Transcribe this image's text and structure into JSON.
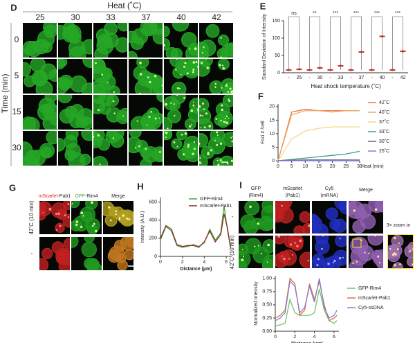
{
  "panels": {
    "D": {
      "label": "D",
      "title": "Heat (˚C)",
      "columns": [
        "25",
        "30",
        "33",
        "37",
        "40",
        "42"
      ],
      "rows": [
        "0",
        "5",
        "15",
        "30"
      ],
      "row_axis": "Time (min)"
    },
    "G": {
      "label": "G",
      "headers": [
        [
          "mScarlet-",
          "Pab1"
        ],
        [
          "GFP-",
          "Rim4"
        ],
        [
          "Merge"
        ]
      ],
      "header_colors": [
        "#d62728",
        "#3aa63a",
        "#222222"
      ],
      "rows": [
        "42˚C (10 min)",
        "-"
      ]
    },
    "I": {
      "label": "I",
      "headers": [
        [
          "GFP",
          "(Rim4)"
        ],
        [
          "mScarlet",
          "(Pab1)"
        ],
        [
          "Cy5",
          "(mRNA)"
        ],
        [
          "Merge"
        ]
      ],
      "header_colors": [
        "#3aa63a",
        "#d62728",
        "#3050c8",
        "#222222"
      ],
      "rows": [
        "-",
        "42˚C (10 min)"
      ],
      "zoom": "3× zoom in"
    }
  },
  "chart_data": [
    {
      "type": "dot",
      "panel": "E",
      "y_label": "Standard Deviation of Intensity",
      "x_label": "Heat shock temperature (˚C)",
      "categories": [
        "-",
        "25",
        "-",
        "30",
        "-",
        "33",
        "-",
        "37",
        "-",
        "40",
        "-",
        "42"
      ],
      "values": [
        8,
        10,
        8,
        14,
        8,
        20,
        8,
        60,
        8,
        105,
        8,
        62
      ],
      "significance": [
        "ns",
        "**",
        "***",
        "***",
        "***",
        "***"
      ],
      "color": "#c0392b",
      "ylim": [
        0,
        150
      ],
      "yticks": [
        0,
        50,
        100,
        150
      ]
    },
    {
      "type": "line",
      "panel": "F",
      "y_label": "Foci # /cell",
      "x_label": "Heat (min)",
      "x": [
        0,
        5,
        10,
        15,
        20,
        25,
        30
      ],
      "xlim": [
        0,
        30
      ],
      "xticks": [
        0,
        5,
        10,
        15,
        20,
        25,
        30
      ],
      "ylim": [
        0,
        21
      ],
      "yticks": [
        0,
        5,
        10,
        15,
        20
      ],
      "legend": "right",
      "series": [
        {
          "name": "42˚C",
          "color": "#e8743b",
          "values": [
            0,
            18,
            19,
            18.5,
            18.5,
            18.5,
            18.5
          ]
        },
        {
          "name": "40˚C",
          "color": "#f0a868",
          "values": [
            0,
            17,
            18.5,
            18.5,
            18,
            18.5,
            18.5
          ]
        },
        {
          "name": "37˚C",
          "color": "#f5d98a",
          "values": [
            0,
            8,
            11,
            12,
            12.5,
            12.5,
            12.5
          ]
        },
        {
          "name": "33˚C",
          "color": "#3c9f84",
          "values": [
            0,
            0.5,
            1,
            1.5,
            2,
            2.5,
            3.5
          ]
        },
        {
          "name": "30˚C",
          "color": "#6a5a8c",
          "values": [
            0,
            0.2,
            0.3,
            0.3,
            0.3,
            0.3,
            0.3
          ]
        },
        {
          "name": "25˚C",
          "color": "#7a7ee0",
          "values": [
            0,
            0,
            0.1,
            0.1,
            0.1,
            0.1,
            0.2
          ]
        }
      ]
    },
    {
      "type": "line",
      "panel": "H",
      "y_label": "Intensity (A.U.)",
      "x_label": "Distance (µm)",
      "x": [
        0,
        0.5,
        1,
        1.5,
        2,
        2.5,
        3,
        3.5,
        4,
        4.5,
        5,
        5.5,
        5.8,
        6.1,
        6.4
      ],
      "xlim": [
        0,
        6.5
      ],
      "xticks": [
        0,
        2,
        4,
        6
      ],
      "ylim": [
        0,
        650
      ],
      "yticks": [
        0,
        200,
        400,
        600
      ],
      "legend": "upper right",
      "series": [
        {
          "name": "GFP-Rim4",
          "color": "#3aa63a",
          "values": [
            180,
            330,
            280,
            120,
            100,
            110,
            130,
            110,
            150,
            300,
            180,
            260,
            560,
            300,
            90
          ]
        },
        {
          "name": "mScarlet-Pab1",
          "color": "#8b2a2a",
          "values": [
            200,
            340,
            300,
            130,
            110,
            120,
            120,
            100,
            160,
            280,
            160,
            240,
            470,
            320,
            100
          ]
        }
      ]
    },
    {
      "type": "line",
      "panel": "I",
      "y_label": "Normalized Intensity",
      "x_label": "Distance (µm)",
      "x": [
        0,
        0.5,
        1,
        1.5,
        2,
        2.5,
        3,
        3.5,
        4,
        4.5,
        5,
        5.5,
        6,
        6.3
      ],
      "xlim": [
        0,
        6.5
      ],
      "xticks": [
        0,
        2,
        4,
        6
      ],
      "ylim": [
        0,
        1.05
      ],
      "yticks": [
        {
          "value": 0,
          "label": "0.00"
        },
        {
          "value": 0.25,
          "label": "0.25"
        },
        {
          "value": 0.5,
          "label": "0.50"
        },
        {
          "value": 0.75,
          "label": "0.75"
        },
        {
          "value": 1,
          "label": "1.00"
        }
      ],
      "legend": "right",
      "series": [
        {
          "name": "GFP-Rim4",
          "color": "#6cc46c",
          "values": [
            0.1,
            0.12,
            0.15,
            0.6,
            0.35,
            0.3,
            0.3,
            0.3,
            0.35,
            0.8,
            0.4,
            0.2,
            0.15,
            0.2
          ]
        },
        {
          "name": "mScarlet-Pab1",
          "color": "#d9733a",
          "values": [
            0.25,
            0.3,
            0.4,
            1.0,
            0.9,
            0.3,
            0.4,
            0.9,
            0.6,
            0.95,
            0.5,
            0.2,
            0.25,
            0.3
          ]
        },
        {
          "name": "Cy5-ssDNA",
          "color": "#8a7ad0",
          "values": [
            0.2,
            0.25,
            0.35,
            0.95,
            0.85,
            0.35,
            0.45,
            0.85,
            0.55,
            1.0,
            0.45,
            0.25,
            0.3,
            0.4
          ]
        }
      ]
    }
  ]
}
